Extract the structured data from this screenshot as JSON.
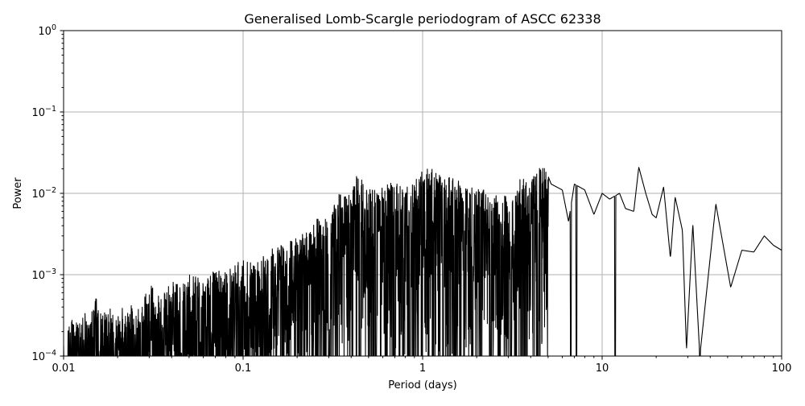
{
  "chart_data": {
    "type": "line",
    "title": "Generalised Lomb-Scargle periodogram of ASCC 62338",
    "xlabel": "Period (days)",
    "ylabel": "Power",
    "xscale": "log",
    "yscale": "log",
    "xlim": [
      0.01,
      100
    ],
    "ylim": [
      0.0001,
      1
    ],
    "grid": true,
    "line_color": "#000000",
    "grid_color": "#b0b0b0",
    "x_ticks": [
      {
        "value": 0.01,
        "label": "0.01"
      },
      {
        "value": 0.1,
        "label": "0.1"
      },
      {
        "value": 1,
        "label": "1"
      },
      {
        "value": 10,
        "label": "10"
      },
      {
        "value": 100,
        "label": "100"
      }
    ],
    "y_ticks": [
      {
        "value": 0.0001,
        "base": "10",
        "exp": "−4"
      },
      {
        "value": 0.001,
        "base": "10",
        "exp": "−3"
      },
      {
        "value": 0.01,
        "base": "10",
        "exp": "−2"
      },
      {
        "value": 0.1,
        "base": "10",
        "exp": "−1"
      },
      {
        "value": 1,
        "base": "10",
        "exp": "0"
      }
    ],
    "series": [
      {
        "values": [
          [
            0.01,
            0.00025
          ],
          [
            0.0105,
            0.0002
          ],
          [
            0.011,
            0.0003
          ],
          [
            0.012,
            0.00025
          ],
          [
            0.013,
            0.00035
          ],
          [
            0.014,
            0.0003
          ],
          [
            0.015,
            0.0006
          ],
          [
            0.016,
            0.00035
          ],
          [
            0.018,
            0.0004
          ],
          [
            0.02,
            0.0003
          ],
          [
            0.022,
            0.00045
          ],
          [
            0.025,
            0.0004
          ],
          [
            0.028,
            0.0005
          ],
          [
            0.03,
            0.0008
          ],
          [
            0.035,
            0.0005
          ],
          [
            0.04,
            0.0009
          ],
          [
            0.045,
            0.0007
          ],
          [
            0.05,
            0.001
          ],
          [
            0.06,
            0.0009
          ],
          [
            0.07,
            0.0012
          ],
          [
            0.08,
            0.0011
          ],
          [
            0.09,
            0.0014
          ],
          [
            0.1,
            0.0015
          ],
          [
            0.12,
            0.0015
          ],
          [
            0.15,
            0.0022
          ],
          [
            0.18,
            0.0025
          ],
          [
            0.2,
            0.003
          ],
          [
            0.25,
            0.0045
          ],
          [
            0.28,
            0.006
          ],
          [
            0.3,
            0.004
          ],
          [
            0.33,
            0.01
          ],
          [
            0.38,
            0.009
          ],
          [
            0.43,
            0.018
          ],
          [
            0.5,
            0.011
          ],
          [
            0.6,
            0.012
          ],
          [
            0.7,
            0.015
          ],
          [
            0.8,
            0.013
          ],
          [
            0.9,
            0.014
          ],
          [
            1.0,
            0.02
          ],
          [
            1.1,
            0.021
          ],
          [
            1.2,
            0.018
          ],
          [
            1.4,
            0.016
          ],
          [
            1.6,
            0.015
          ],
          [
            1.8,
            0.012
          ],
          [
            2.0,
            0.012
          ],
          [
            2.3,
            0.013
          ],
          [
            2.6,
            0.01
          ],
          [
            3.0,
            0.009
          ],
          [
            3.5,
            0.016
          ],
          [
            4.0,
            0.015
          ],
          [
            4.7,
            0.023
          ],
          [
            5.2,
            0.013
          ],
          [
            6.0,
            0.011
          ],
          [
            6.5,
            0.0045
          ],
          [
            7.0,
            0.013
          ],
          [
            8.0,
            0.011
          ],
          [
            9.0,
            0.0055
          ],
          [
            10.0,
            0.01
          ],
          [
            11.0,
            0.0085
          ],
          [
            12.5,
            0.01
          ],
          [
            13.5,
            0.0065
          ],
          [
            15.0,
            0.006
          ],
          [
            16.0,
            0.021
          ],
          [
            17.5,
            0.01
          ],
          [
            19.0,
            0.0055
          ],
          [
            20.0,
            0.005
          ],
          [
            22.0,
            0.012
          ],
          [
            24.0,
            0.0016
          ],
          [
            25.5,
            0.009
          ],
          [
            28.0,
            0.0035
          ],
          [
            29.5,
            0.00012
          ],
          [
            32.0,
            0.0042
          ],
          [
            35.0,
            0.0001
          ],
          [
            43.0,
            0.0074
          ],
          [
            52.0,
            0.0007
          ],
          [
            60.0,
            0.002
          ],
          [
            70.0,
            0.0019
          ],
          [
            80.0,
            0.003
          ],
          [
            90.0,
            0.0023
          ],
          [
            100,
            0.002
          ]
        ],
        "dips_to_floor": [
          0.3,
          0.45,
          0.55,
          0.62,
          0.7,
          0.78,
          0.85,
          1.3,
          1.5,
          1.7,
          1.9,
          2.1,
          2.4,
          2.7,
          3.1,
          4.4,
          6.7,
          7.2,
          11.8,
          35.0
        ]
      }
    ]
  }
}
